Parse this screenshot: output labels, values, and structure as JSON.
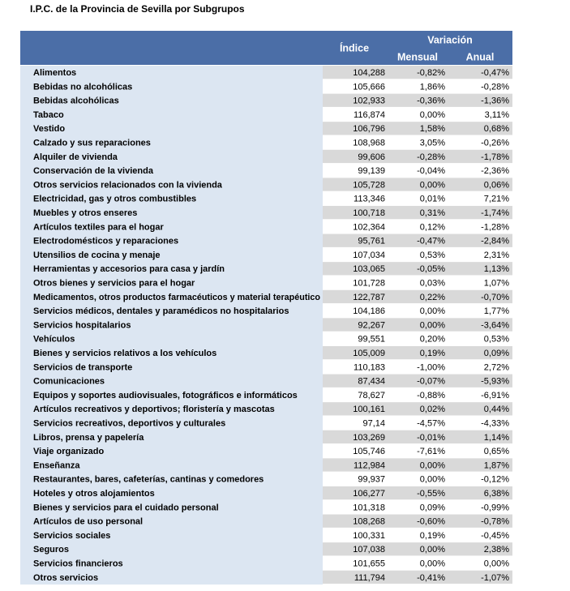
{
  "title": "I.P.C. de la Provincia de Sevilla por Subgrupos",
  "table": {
    "header": {
      "indice": "Índice",
      "variacion": "Variación",
      "mensual": "Mensual",
      "anual": "Anual"
    },
    "rows": [
      [
        "Alimentos",
        "104,288",
        "-0,82%",
        "-0,47%"
      ],
      [
        "Bebidas no alcohólicas",
        "105,666",
        "1,86%",
        "-0,28%"
      ],
      [
        "Bebidas alcohólicas",
        "102,933",
        "-0,36%",
        "-1,36%"
      ],
      [
        "Tabaco",
        "116,874",
        "0,00%",
        "3,11%"
      ],
      [
        "Vestido",
        "106,796",
        "1,58%",
        "0,68%"
      ],
      [
        "Calzado y sus reparaciones",
        "108,968",
        "3,05%",
        "-0,26%"
      ],
      [
        "Alquiler de vivienda",
        "99,606",
        "-0,28%",
        "-1,78%"
      ],
      [
        "Conservación de la vivienda",
        "99,139",
        "-0,04%",
        "-2,36%"
      ],
      [
        "Otros servicios relacionados con la vivienda",
        "105,728",
        "0,00%",
        "0,06%"
      ],
      [
        "Electricidad, gas y otros combustibles",
        "113,346",
        "0,01%",
        "7,21%"
      ],
      [
        "Muebles y otros enseres",
        "100,718",
        "0,31%",
        "-1,74%"
      ],
      [
        "Artículos textiles para el hogar",
        "102,364",
        "0,12%",
        "-1,28%"
      ],
      [
        "Electrodomésticos y reparaciones",
        "95,761",
        "-0,47%",
        "-2,84%"
      ],
      [
        "Utensilios de cocina y menaje",
        "107,034",
        "0,53%",
        "2,31%"
      ],
      [
        "Herramientas y accesorios para casa y jardín",
        "103,065",
        "-0,05%",
        "1,13%"
      ],
      [
        "Otros bienes y servicios para el hogar",
        "101,728",
        "0,03%",
        "1,07%"
      ],
      [
        "Medicamentos, otros productos farmacéuticos y material terapéutico",
        "122,787",
        "0,22%",
        "-0,70%"
      ],
      [
        "Servicios médicos, dentales y paramédicos no hospitalarios",
        "104,186",
        "0,00%",
        "1,77%"
      ],
      [
        "Servicios hospitalarios",
        "92,267",
        "0,00%",
        "-3,64%"
      ],
      [
        "Vehículos",
        "99,551",
        "0,20%",
        "0,53%"
      ],
      [
        "Bienes y servicios relativos a los vehículos",
        "105,009",
        "0,19%",
        "0,09%"
      ],
      [
        "Servicios de transporte",
        "110,183",
        "-1,00%",
        "2,72%"
      ],
      [
        "Comunicaciones",
        "87,434",
        "-0,07%",
        "-5,93%"
      ],
      [
        "Equipos y soportes audiovisuales, fotográficos e informáticos",
        "78,627",
        "-0,88%",
        "-6,91%"
      ],
      [
        "Artículos recreativos y deportivos; floristería y mascotas",
        "100,161",
        "0,02%",
        "0,44%"
      ],
      [
        "Servicios recreativos, deportivos y culturales",
        "97,14",
        "-4,57%",
        "-4,33%"
      ],
      [
        "Libros, prensa y papelería",
        "103,269",
        "-0,01%",
        "1,14%"
      ],
      [
        "Viaje organizado",
        "105,746",
        "-7,61%",
        "0,65%"
      ],
      [
        "Enseñanza",
        "112,984",
        "0,00%",
        "1,87%"
      ],
      [
        "Restaurantes, bares, cafeterías, cantinas y comedores",
        "99,937",
        "0,00%",
        "-0,12%"
      ],
      [
        "Hoteles y otros alojamientos",
        "106,277",
        "-0,55%",
        "6,38%"
      ],
      [
        "Bienes y servicios para el cuidado personal",
        "101,318",
        "0,09%",
        "-0,99%"
      ],
      [
        "Artículos de uso personal",
        "108,268",
        "-0,60%",
        "-0,78%"
      ],
      [
        "Servicios sociales",
        "100,331",
        "0,19%",
        "-0,45%"
      ],
      [
        "Seguros",
        "107,038",
        "0,00%",
        "2,38%"
      ],
      [
        "Servicios financieros",
        "101,655",
        "0,00%",
        "0,00%"
      ],
      [
        "Otros servicios",
        "111,794",
        "-0,41%",
        "-1,07%"
      ]
    ]
  }
}
